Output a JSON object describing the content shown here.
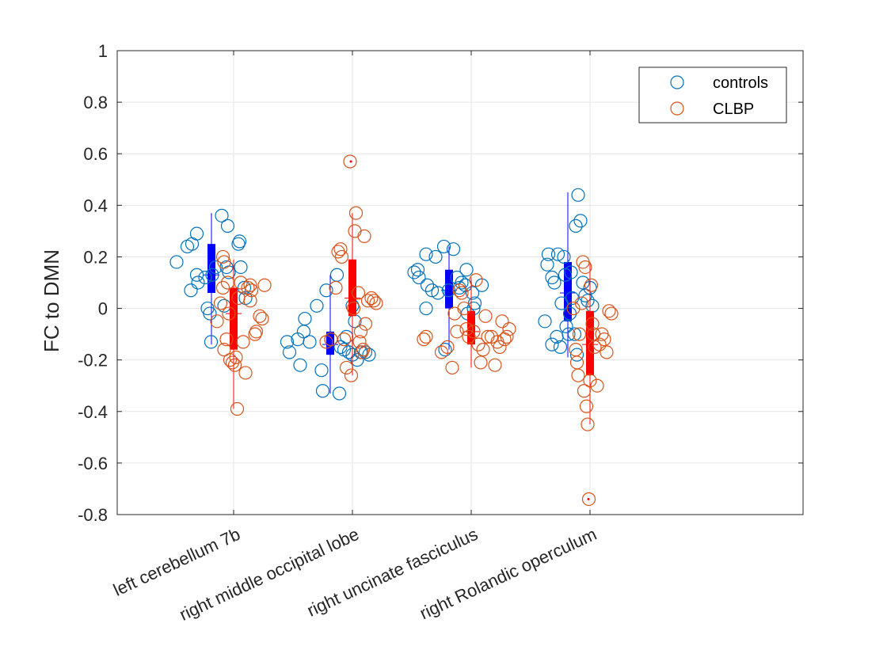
{
  "chart_data": {
    "type": "scatter",
    "title": "",
    "xlabel": "",
    "ylabel": "FC  to  DMN",
    "ylim": [
      -0.8,
      1
    ],
    "yticks": [
      "1",
      "0.8",
      "0.6",
      "0.4",
      "0.2",
      "0",
      "-0.2",
      "-0.4",
      "-0.6",
      "-0.8"
    ],
    "categories": [
      "left cerebellum 7b",
      "right middle occipital lobe",
      "right uncinate fasciculus",
      "right Rolandic operculum"
    ],
    "grid": true,
    "legend_position": "top-right",
    "series": [
      {
        "name": "controls",
        "color": "#0072BD",
        "box_color": "#0000FF",
        "points": [
          [
            [
              -0.48,
              0.18
            ],
            [
              -0.39,
              0.24
            ],
            [
              -0.35,
              0.25
            ],
            [
              -0.31,
              0.29
            ],
            [
              -0.36,
              0.07
            ],
            [
              -0.31,
              0.13
            ],
            [
              -0.3,
              0.1
            ],
            [
              -0.24,
              0.12
            ],
            [
              -0.22,
              0.0
            ],
            [
              -0.2,
              -0.02
            ],
            [
              -0.19,
              -0.13
            ],
            [
              -0.18,
              0.13
            ],
            [
              -0.15,
              0.16
            ],
            [
              -0.1,
              0.36
            ],
            [
              -0.05,
              0.32
            ],
            [
              -0.04,
              0.14
            ],
            [
              -0.06,
              0.16
            ],
            [
              -0.08,
              0.01
            ],
            [
              0.04,
              0.25
            ],
            [
              0.05,
              0.26
            ],
            [
              0.06,
              0.16
            ],
            [
              0.09,
              0.08
            ],
            [
              0.1,
              0.04
            ]
          ],
          [
            [
              -0.55,
              -0.13
            ],
            [
              -0.53,
              -0.17
            ],
            [
              -0.46,
              -0.12
            ],
            [
              -0.44,
              -0.22
            ],
            [
              -0.41,
              -0.09
            ],
            [
              -0.4,
              -0.04
            ],
            [
              -0.36,
              -0.13
            ],
            [
              -0.3,
              0.01
            ],
            [
              -0.26,
              -0.24
            ],
            [
              -0.25,
              -0.32
            ],
            [
              -0.22,
              0.07
            ],
            [
              -0.18,
              -0.12
            ],
            [
              -0.13,
              0.13
            ],
            [
              -0.11,
              -0.33
            ],
            [
              -0.1,
              -0.15
            ],
            [
              -0.07,
              -0.16
            ],
            [
              -0.05,
              -0.11
            ],
            [
              -0.03,
              -0.17
            ],
            [
              0.0,
              -0.18
            ],
            [
              0.0,
              0.01
            ],
            [
              0.02,
              -0.05
            ],
            [
              0.04,
              -0.2
            ],
            [
              0.07,
              -0.17
            ],
            [
              0.14,
              -0.18
            ],
            [
              0.11,
              -0.17
            ]
          ],
          [
            [
              -0.48,
              0.14
            ],
            [
              -0.45,
              0.15
            ],
            [
              -0.44,
              0.12
            ],
            [
              -0.38,
              0.21
            ],
            [
              -0.37,
              0.09
            ],
            [
              -0.38,
              0.0
            ],
            [
              -0.33,
              0.07
            ],
            [
              -0.3,
              0.2
            ],
            [
              -0.28,
              0.06
            ],
            [
              -0.23,
              0.24
            ],
            [
              -0.22,
              -0.16
            ],
            [
              -0.19,
              0.07
            ],
            [
              -0.15,
              0.23
            ],
            [
              -0.12,
              0.12
            ],
            [
              -0.1,
              0.08
            ],
            [
              -0.08,
              0.1
            ],
            [
              -0.05,
              0.09
            ],
            [
              -0.04,
              0.15
            ],
            [
              -0.03,
              -0.02
            ],
            [
              0.02,
              0.0
            ],
            [
              0.03,
              0.02
            ],
            [
              0.09,
              0.09
            ],
            [
              0.01,
              0.06
            ]
          ],
          [
            [
              -0.38,
              -0.05
            ],
            [
              -0.36,
              0.17
            ],
            [
              -0.35,
              0.21
            ],
            [
              -0.32,
              0.12
            ],
            [
              -0.32,
              -0.14
            ],
            [
              -0.3,
              0.1
            ],
            [
              -0.28,
              -0.11
            ],
            [
              -0.27,
              0.21
            ],
            [
              -0.25,
              -0.15
            ],
            [
              -0.24,
              0.02
            ],
            [
              -0.22,
              0.2
            ],
            [
              -0.21,
              0.13
            ],
            [
              -0.2,
              -0.07
            ],
            [
              -0.18,
              -0.1
            ],
            [
              -0.17,
              -0.02
            ],
            [
              -0.16,
              0.14
            ],
            [
              -0.15,
              0.04
            ],
            [
              -0.13,
              -0.1
            ],
            [
              -0.12,
              0.32
            ],
            [
              -0.1,
              0.44
            ],
            [
              -0.08,
              0.34
            ],
            [
              -0.06,
              0.1
            ],
            [
              -0.04,
              0.05
            ],
            [
              -0.02,
              0.03
            ],
            [
              0.0,
              0.08
            ],
            [
              0.02,
              0.01
            ],
            [
              -0.11,
              -0.18
            ]
          ]
        ],
        "boxes": [
          {
            "q1": 0.06,
            "q3": 0.25,
            "median": 0.13,
            "whisker_low": -0.14,
            "whisker_high": 0.37
          },
          {
            "q1": -0.18,
            "q3": -0.09,
            "median": -0.14,
            "whisker_low": -0.33,
            "whisker_high": 0.13
          },
          {
            "q1": 0.0,
            "q3": 0.15,
            "median": 0.07,
            "whisker_low": -0.16,
            "whisker_high": 0.24
          },
          {
            "q1": -0.05,
            "q3": 0.18,
            "median": 0.06,
            "whisker_low": -0.19,
            "whisker_high": 0.45
          }
        ]
      },
      {
        "name": "CLBP",
        "color": "#D95319",
        "box_color": "#FF0000",
        "points": [
          [
            [
              -0.14,
              -0.05
            ],
            [
              -0.11,
              0.02
            ],
            [
              -0.09,
              0.08
            ],
            [
              -0.08,
              0.18
            ],
            [
              -0.09,
              0.2
            ],
            [
              -0.08,
              -0.16
            ],
            [
              -0.06,
              -0.12
            ],
            [
              -0.05,
              0.1
            ],
            [
              -0.04,
              -0.02
            ],
            [
              -0.03,
              -0.2
            ],
            [
              -0.01,
              -0.21
            ],
            [
              0.01,
              -0.22
            ],
            [
              0.02,
              -0.19
            ],
            [
              0.03,
              -0.39
            ],
            [
              0.04,
              0.04
            ],
            [
              0.06,
              0.1
            ],
            [
              0.08,
              -0.13
            ],
            [
              0.1,
              -0.25
            ],
            [
              0.12,
              0.08
            ],
            [
              0.14,
              0.09
            ],
            [
              0.15,
              0.07
            ],
            [
              0.18,
              -0.1
            ],
            [
              0.19,
              -0.09
            ],
            [
              0.22,
              -0.03
            ],
            [
              0.24,
              -0.04
            ],
            [
              0.26,
              0.09
            ],
            [
              0.14,
              0.03
            ]
          ],
          [
            [
              -0.22,
              -0.13
            ],
            [
              -0.18,
              -0.12
            ],
            [
              -0.14,
              0.08
            ],
            [
              -0.12,
              0.22
            ],
            [
              -0.1,
              0.23
            ],
            [
              -0.09,
              0.2
            ],
            [
              -0.07,
              -0.12
            ],
            [
              -0.05,
              -0.23
            ],
            [
              -0.02,
              0.57
            ],
            [
              -0.01,
              -0.26
            ],
            [
              0.01,
              0.0
            ],
            [
              0.02,
              0.3
            ],
            [
              0.03,
              0.37
            ],
            [
              0.05,
              0.06
            ],
            [
              0.07,
              -0.09
            ],
            [
              0.08,
              -0.17
            ],
            [
              0.09,
              -0.16
            ],
            [
              0.1,
              0.28
            ],
            [
              0.11,
              -0.06
            ],
            [
              0.13,
              0.03
            ],
            [
              0.16,
              0.04
            ],
            [
              0.18,
              0.03
            ],
            [
              0.2,
              0.02
            ],
            [
              0.06,
              -0.13
            ]
          ],
          [
            [
              -0.4,
              -0.12
            ],
            [
              -0.38,
              -0.11
            ],
            [
              -0.25,
              -0.17
            ],
            [
              -0.2,
              -0.15
            ],
            [
              -0.16,
              -0.23
            ],
            [
              -0.14,
              -0.02
            ],
            [
              -0.12,
              -0.09
            ],
            [
              -0.1,
              0.07
            ],
            [
              -0.08,
              0.06
            ],
            [
              -0.06,
              0.0
            ],
            [
              -0.04,
              -0.08
            ],
            [
              -0.02,
              -0.11
            ],
            [
              0.02,
              -0.09
            ],
            [
              0.04,
              0.11
            ],
            [
              0.06,
              -0.14
            ],
            [
              0.08,
              -0.21
            ],
            [
              0.1,
              -0.16
            ],
            [
              0.12,
              -0.03
            ],
            [
              0.14,
              -0.11
            ],
            [
              0.17,
              -0.11
            ],
            [
              0.2,
              -0.22
            ],
            [
              0.22,
              -0.13
            ],
            [
              0.24,
              -0.15
            ],
            [
              0.26,
              -0.05
            ],
            [
              0.28,
              -0.12
            ],
            [
              0.3,
              -0.11
            ],
            [
              0.32,
              -0.08
            ]
          ],
          [
            [
              -0.14,
              0.0
            ],
            [
              -0.12,
              -0.16
            ],
            [
              -0.11,
              -0.21
            ],
            [
              -0.1,
              -0.26
            ],
            [
              -0.09,
              -0.1
            ],
            [
              -0.07,
              0.02
            ],
            [
              -0.06,
              0.18
            ],
            [
              -0.05,
              -0.32
            ],
            [
              -0.04,
              0.16
            ],
            [
              -0.03,
              -0.38
            ],
            [
              -0.02,
              -0.45
            ],
            [
              -0.01,
              -0.74
            ],
            [
              0.0,
              -0.28
            ],
            [
              0.01,
              0.09
            ],
            [
              0.02,
              -0.06
            ],
            [
              0.03,
              -0.1
            ],
            [
              0.04,
              -0.15
            ],
            [
              0.06,
              -0.3
            ],
            [
              0.08,
              -0.14
            ],
            [
              0.1,
              -0.1
            ],
            [
              0.12,
              -0.12
            ],
            [
              0.14,
              -0.17
            ],
            [
              0.16,
              -0.01
            ],
            [
              0.18,
              -0.02
            ]
          ]
        ],
        "boxes": [
          {
            "q1": -0.16,
            "q3": 0.08,
            "median": -0.02,
            "whisker_low": -0.39,
            "whisker_high": 0.19
          },
          {
            "q1": -0.03,
            "q3": 0.19,
            "median": 0.04,
            "whisker_low": -0.26,
            "whisker_high": 0.37
          },
          {
            "q1": -0.14,
            "q3": -0.01,
            "median": -0.09,
            "whisker_low": -0.23,
            "whisker_high": 0.12
          },
          {
            "q1": -0.26,
            "q3": -0.01,
            "median": -0.14,
            "whisker_low": -0.45,
            "whisker_high": 0.18
          }
        ],
        "outliers": [
          {
            "category": 1,
            "value": 0.57
          },
          {
            "category": 3,
            "value": -0.74
          }
        ]
      }
    ]
  }
}
